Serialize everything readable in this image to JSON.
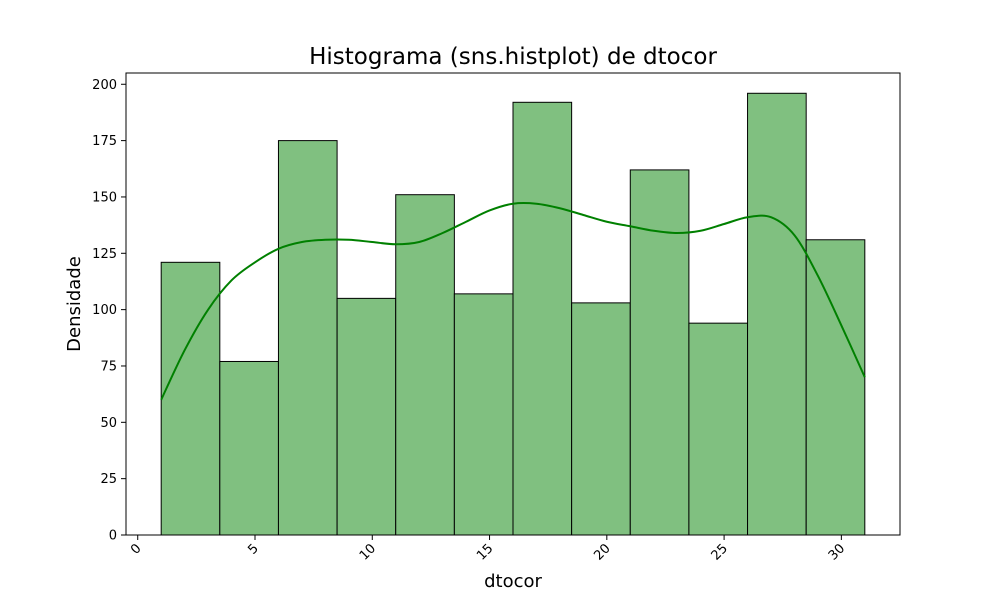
{
  "chart_data": {
    "type": "bar",
    "title": "Histograma (sns.histplot) de dtocor",
    "xlabel": "dtocor",
    "ylabel": "Densidade",
    "xlim": [
      -0.5,
      32.5
    ],
    "ylim": [
      0,
      205
    ],
    "x_ticks": [
      0,
      5,
      10,
      15,
      20,
      25,
      30
    ],
    "y_ticks": [
      0,
      25,
      50,
      75,
      100,
      125,
      150,
      175,
      200
    ],
    "grid": false,
    "bins": [
      {
        "start": 1.0,
        "end": 3.5,
        "value": 121
      },
      {
        "start": 3.5,
        "end": 6.0,
        "value": 77
      },
      {
        "start": 6.0,
        "end": 8.5,
        "value": 175
      },
      {
        "start": 8.5,
        "end": 11.0,
        "value": 105
      },
      {
        "start": 11.0,
        "end": 13.5,
        "value": 151
      },
      {
        "start": 13.5,
        "end": 16.0,
        "value": 107
      },
      {
        "start": 16.0,
        "end": 18.5,
        "value": 192
      },
      {
        "start": 18.5,
        "end": 21.0,
        "value": 103
      },
      {
        "start": 21.0,
        "end": 23.5,
        "value": 162
      },
      {
        "start": 23.5,
        "end": 26.0,
        "value": 94
      },
      {
        "start": 26.0,
        "end": 28.5,
        "value": 196
      },
      {
        "start": 28.5,
        "end": 31.0,
        "value": 131
      }
    ],
    "kde": {
      "x": [
        1,
        2,
        3,
        4,
        5,
        6,
        7,
        8,
        9,
        10,
        11,
        12,
        13,
        14,
        15,
        16,
        17,
        18,
        19,
        20,
        21,
        22,
        23,
        24,
        25,
        26,
        27,
        28,
        29,
        30,
        31
      ],
      "y": [
        60,
        82,
        100,
        113,
        121,
        127,
        130,
        131,
        131,
        130,
        129,
        130,
        134,
        139,
        144,
        147,
        147,
        145,
        142,
        139,
        137,
        135,
        134,
        135,
        138,
        141,
        141,
        133,
        115,
        93,
        70
      ]
    },
    "colors": {
      "bar_fill": "#80c080",
      "bar_edge": "#000000",
      "kde_line": "#008000"
    }
  }
}
